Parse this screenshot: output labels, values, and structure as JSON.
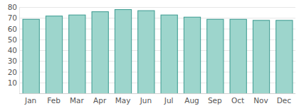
{
  "chart_data": {
    "type": "bar",
    "categories": [
      "Jan",
      "Feb",
      "Mar",
      "Apr",
      "May",
      "Jun",
      "Jul",
      "Aug",
      "Sep",
      "Oct",
      "Nov",
      "Dec"
    ],
    "values": [
      69,
      72,
      73,
      76,
      78,
      77,
      73,
      71,
      69,
      69,
      68,
      68
    ],
    "color": "#9dd5cc",
    "ylim": [
      0,
      80
    ],
    "yticks": [
      10,
      20,
      30,
      40,
      50,
      60,
      70,
      80
    ],
    "grid": true
  }
}
